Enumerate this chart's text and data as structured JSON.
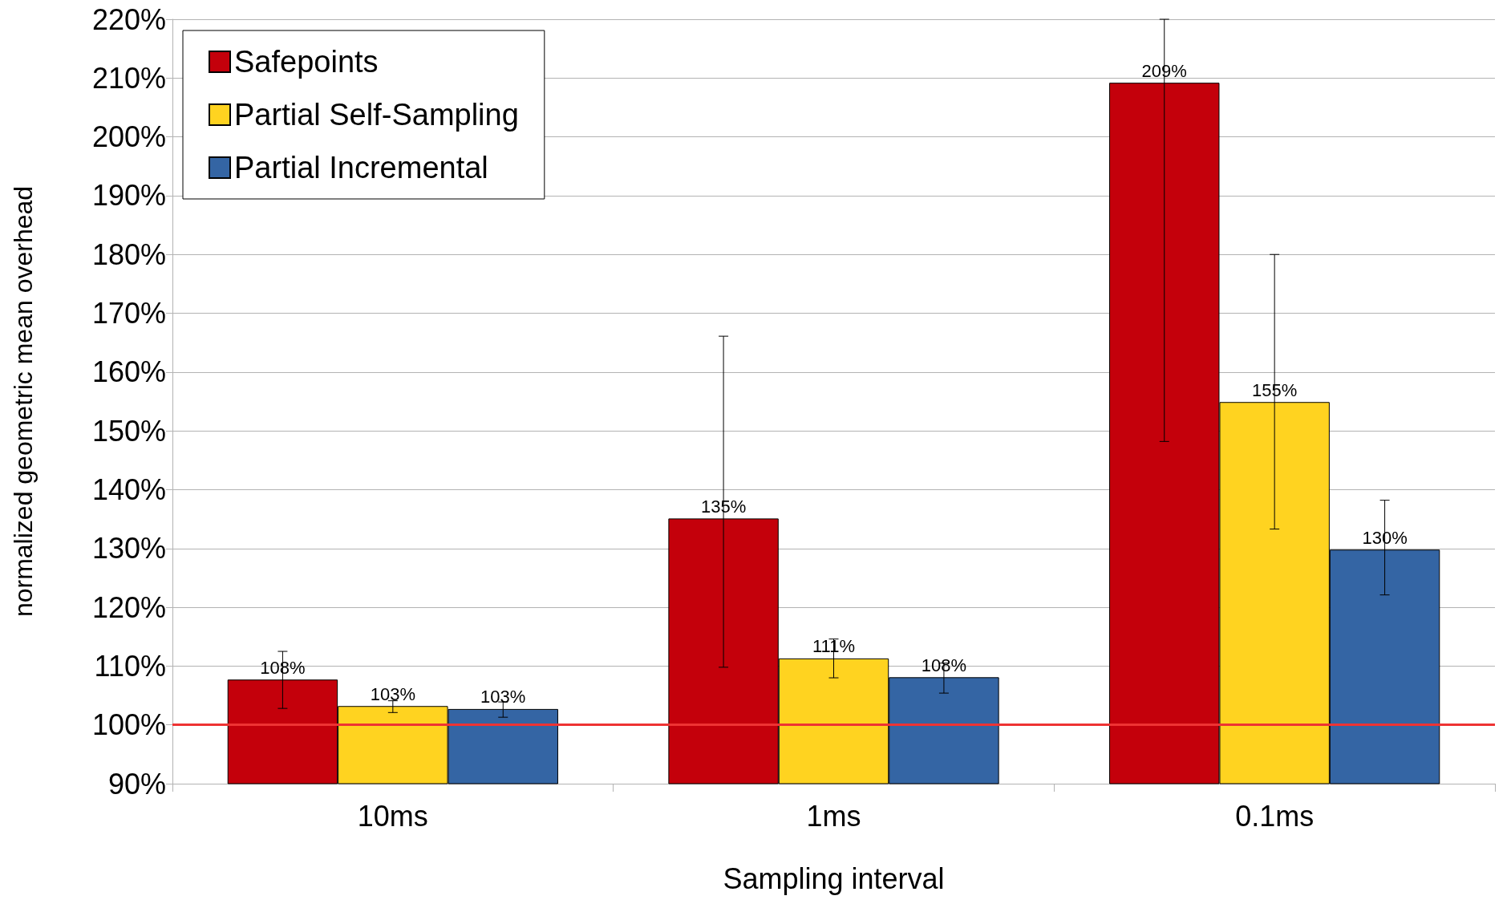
{
  "chart_data": {
    "type": "bar",
    "xlabel": "Sampling interval",
    "ylabel": "normalized geometric mean overhead",
    "categories": [
      "10ms",
      "1ms",
      "0.1ms"
    ],
    "series": [
      {
        "name": "Safepoints",
        "color": "#c4000b",
        "values": [
          107.7,
          135.1,
          209.2
        ],
        "value_labels": [
          "108%",
          "135%",
          "209%"
        ],
        "errors": [
          [
            102.8,
            112.5
          ],
          [
            109.8,
            166.1
          ],
          [
            148.2,
            220
          ]
        ]
      },
      {
        "name": "Partial Self-Sampling",
        "color": "#ffd320",
        "values": [
          103.2,
          111.3,
          154.9
        ],
        "value_labels": [
          "103%",
          "111%",
          "155%"
        ],
        "errors": [
          [
            102.1,
            104.1
          ],
          [
            108.0,
            114.6
          ],
          [
            133.3,
            180.0
          ]
        ]
      },
      {
        "name": "Partial Incremental",
        "color": "#3465a4",
        "values": [
          102.7,
          108.1,
          129.8
        ],
        "value_labels": [
          "103%",
          "108%",
          "130%"
        ],
        "errors": [
          [
            101.3,
            103.9
          ],
          [
            105.4,
            110.5
          ],
          [
            122.1,
            138.2
          ]
        ]
      }
    ],
    "ylim": [
      90,
      220
    ],
    "yticks": [
      {
        "value": 90,
        "label": "90%"
      },
      {
        "value": 100,
        "label": "100%"
      },
      {
        "value": 110,
        "label": "110%"
      },
      {
        "value": 120,
        "label": "120%"
      },
      {
        "value": 130,
        "label": "130%"
      },
      {
        "value": 140,
        "label": "140%"
      },
      {
        "value": 150,
        "label": "150%"
      },
      {
        "value": 160,
        "label": "160%"
      },
      {
        "value": 170,
        "label": "170%"
      },
      {
        "value": 180,
        "label": "180%"
      },
      {
        "value": 190,
        "label": "190%"
      },
      {
        "value": 200,
        "label": "200%"
      },
      {
        "value": 210,
        "label": "210%"
      },
      {
        "value": 220,
        "label": "220%"
      }
    ],
    "ref_lines": [
      {
        "axis": "y",
        "value": 100,
        "color": "#ee3333"
      }
    ],
    "grid": "y",
    "legend": "top left"
  }
}
